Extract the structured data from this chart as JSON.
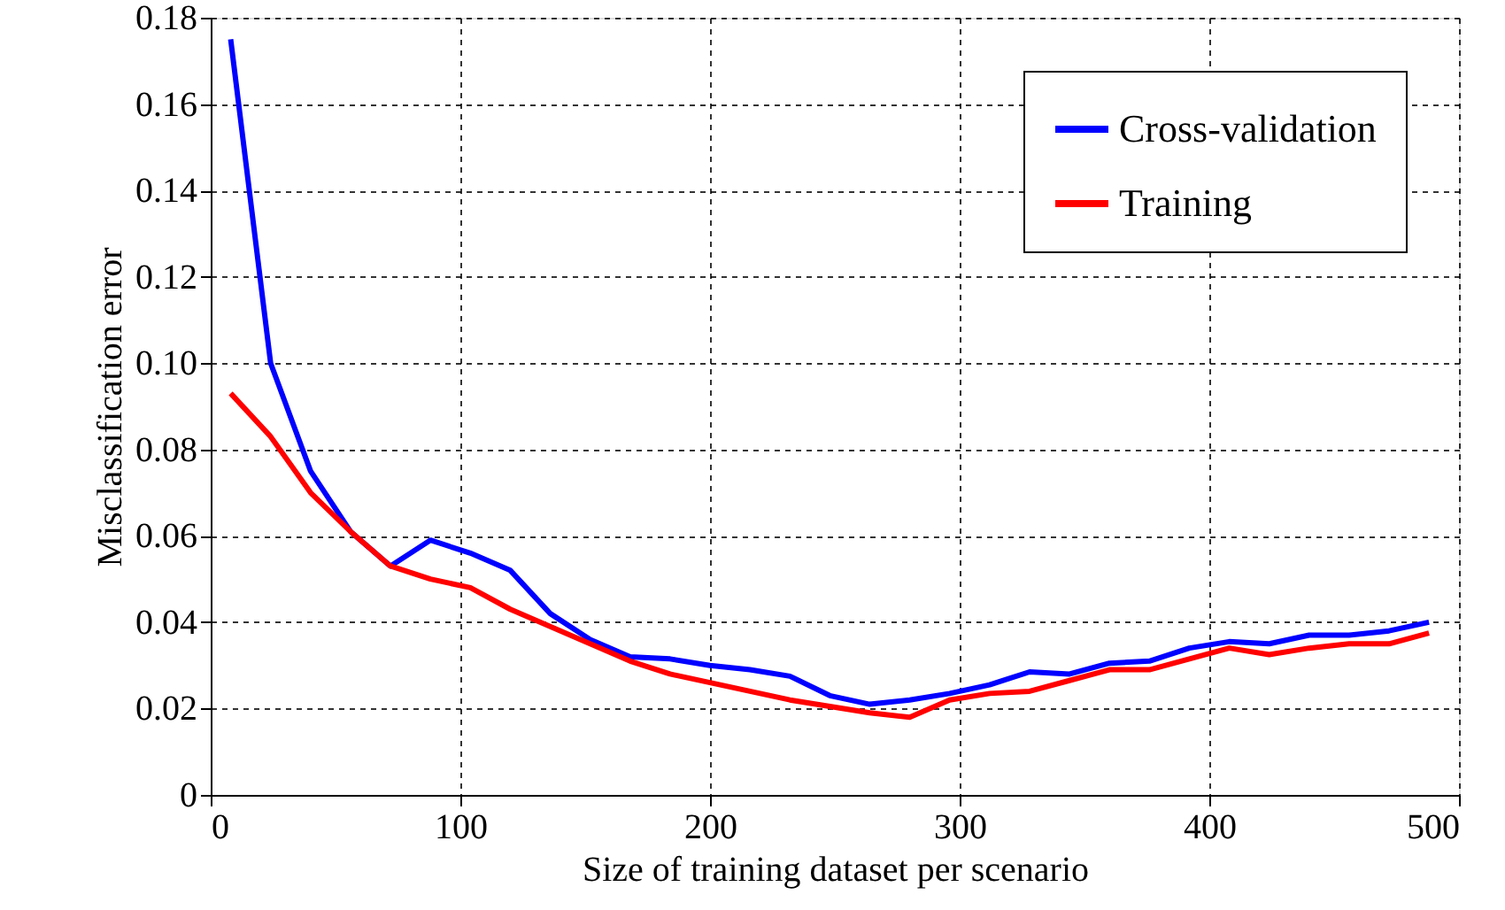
{
  "chart_data": {
    "type": "line",
    "xlabel": "Size of training dataset per scenario",
    "ylabel": "Misclassification error",
    "x": [
      8,
      24,
      40,
      56,
      72,
      88,
      104,
      120,
      136,
      152,
      168,
      184,
      200,
      216,
      232,
      248,
      264,
      280,
      296,
      312,
      328,
      344,
      360,
      376,
      392,
      408,
      424,
      440,
      456,
      472,
      488
    ],
    "series": [
      {
        "name": "Cross-validation",
        "color": "#0000ff",
        "values": [
          0.175,
          0.1,
          0.075,
          0.061,
          0.053,
          0.059,
          0.056,
          0.052,
          0.042,
          0.036,
          0.032,
          0.0315,
          0.03,
          0.029,
          0.0275,
          0.023,
          0.021,
          0.022,
          0.0235,
          0.0255,
          0.0285,
          0.028,
          0.0305,
          0.031,
          0.034,
          0.0355,
          0.035,
          0.037,
          0.037,
          0.038,
          0.04
        ]
      },
      {
        "name": "Training",
        "color": "#ff0000",
        "values": [
          0.093,
          0.083,
          0.07,
          0.061,
          0.053,
          0.05,
          0.048,
          0.043,
          0.039,
          0.035,
          0.031,
          0.028,
          0.026,
          0.024,
          0.022,
          0.0205,
          0.019,
          0.018,
          0.022,
          0.0235,
          0.024,
          0.0265,
          0.029,
          0.029,
          0.0315,
          0.034,
          0.0325,
          0.034,
          0.035,
          0.035,
          0.0375
        ]
      }
    ],
    "xlim": [
      0,
      500
    ],
    "xticks": [
      0,
      100,
      200,
      300,
      400,
      500
    ],
    "ylim": [
      0,
      0.18
    ],
    "yticks": [
      {
        "value": 0,
        "label": "0"
      },
      {
        "value": 0.02,
        "label": "0.02"
      },
      {
        "value": 0.04,
        "label": "0.04"
      },
      {
        "value": 0.06,
        "label": "0.06"
      },
      {
        "value": 0.08,
        "label": "0.08"
      },
      {
        "value": 0.1,
        "label": "0.10"
      },
      {
        "value": 0.12,
        "label": "0.12"
      },
      {
        "value": 0.14,
        "label": "0.14"
      },
      {
        "value": 0.16,
        "label": "0.16"
      },
      {
        "value": 0.18,
        "label": "0.18"
      }
    ],
    "grid": true,
    "legend": "top right",
    "line_style": "solid",
    "marker": "none"
  }
}
